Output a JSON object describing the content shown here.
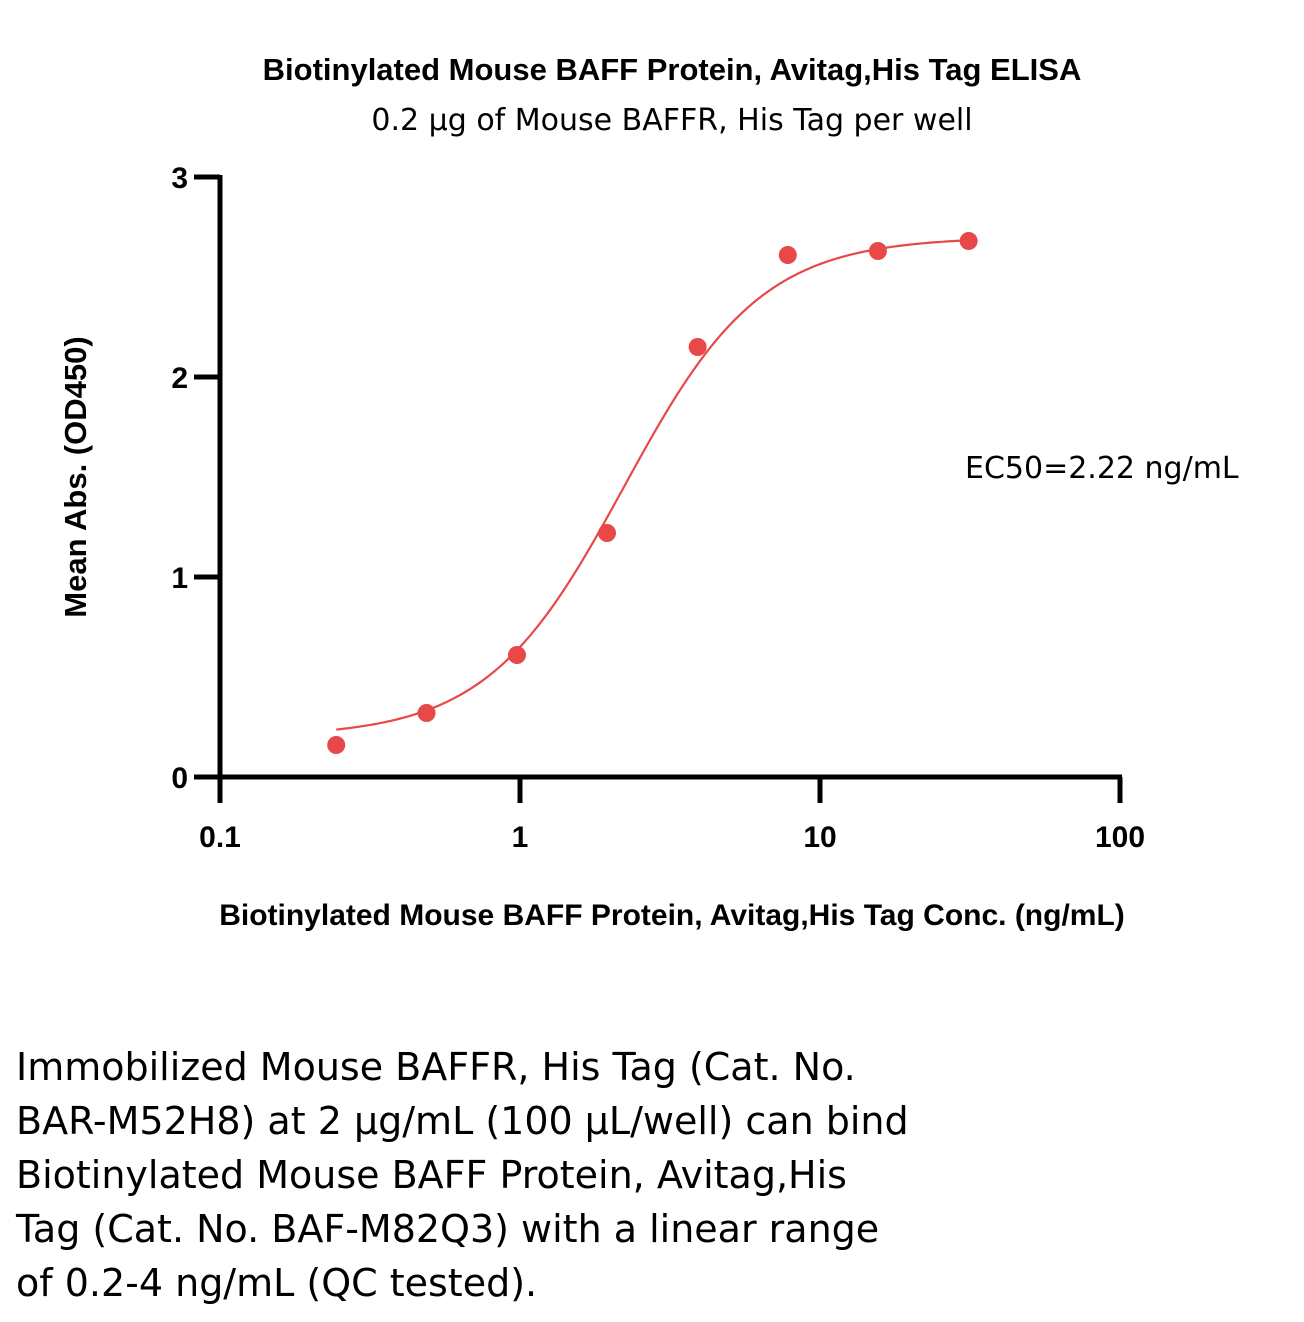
{
  "chart_data": {
    "type": "scatter",
    "title": "Biotinylated Mouse BAFF Protein, Avitag,His Tag ELISA",
    "subtitle": "0.2 µg of Mouse BAFFR, His Tag per well",
    "xlabel": "Biotinylated Mouse BAFF Protein, Avitag,His Tag Conc. (ng/mL)",
    "ylabel": "Mean Abs. (OD450)",
    "xscale": "log",
    "xlim": [
      0.1,
      100
    ],
    "ylim": [
      0,
      3
    ],
    "xticks": [
      "0.1",
      "1",
      "10",
      "100"
    ],
    "yticks": [
      "0",
      "1",
      "2",
      "3"
    ],
    "annotation": "EC50=2.22 ng/mL",
    "color": "#e84848",
    "grid": false,
    "series": [
      {
        "x": [
          0.244,
          0.488,
          0.977,
          1.95,
          3.91,
          7.81,
          15.6,
          31.3
        ],
        "y": [
          0.16,
          0.32,
          0.61,
          1.22,
          2.15,
          2.61,
          2.63,
          2.68
        ]
      }
    ],
    "fit": {
      "x_start": 0.244,
      "x_end": 31.3,
      "bottom": 0.2,
      "top": 2.7,
      "ec50": 2.22,
      "hill": 1.9
    }
  },
  "caption": [
    "Immobilized Mouse BAFFR, His Tag (Cat. No.",
    "BAR-M52H8) at 2 µg/mL (100 µL/well) can bind",
    "Biotinylated Mouse BAFF Protein, Avitag,His",
    "Tag (Cat. No. BAF-M82Q3) with a linear range",
    "of 0.2-4 ng/mL (QC tested)."
  ]
}
